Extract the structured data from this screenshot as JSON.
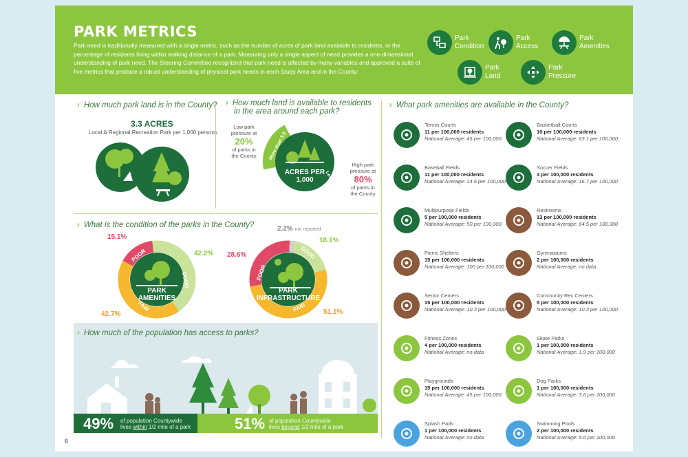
{
  "header": {
    "title": "PARK METRICS",
    "intro": "Park need is traditionally measured with a single metric, such as the number of acres of park land available to residents, or the percentage of residents living within walking distance of a park. Measuring only a single aspect of need provides a one-dimensional understanding of park need. The Steering Committee recognized that park need is affected by many variables and approved a suite of five metrics that produce a robust understanding of physical park needs in each Study Area and in the County:",
    "metrics": [
      {
        "label1": "Park",
        "label2": "Condition",
        "icon": "checklist-icon"
      },
      {
        "label1": "Park",
        "label2": "Access",
        "icon": "walker-icon"
      },
      {
        "label1": "Park",
        "label2": "Amenities",
        "icon": "picnic-icon"
      },
      {
        "label1": "Park",
        "label2": "Land",
        "icon": "land-icon"
      },
      {
        "label1": "Park",
        "label2": "Pressure",
        "icon": "pressure-arrows-icon"
      }
    ]
  },
  "land": {
    "question": "How much park land is in the County?",
    "acres": "3.3 ACRES",
    "desc": "Local & Regional Recreation Park per 1,000 persons"
  },
  "pressure": {
    "question_line1": "How much land is available to residents",
    "question_line2": "in the area around each park?",
    "low_label1": "Low park",
    "low_label2": "pressure at",
    "low_pct": "20%",
    "low_label3": "of parks in",
    "low_label4": "the County",
    "high_label1": "High park",
    "high_label2": "pressure at",
    "high_pct": "80%",
    "high_label3": "of parks in",
    "high_label4": "the County",
    "center1": "ACRES PER",
    "center2": "1,000",
    "arc_more": "More than 3.3",
    "arc_less": "Less than 3.3",
    "low_value": 20,
    "high_value": 80
  },
  "condition": {
    "question": "What is the condition of the parks in the County?",
    "amenities": {
      "title1": "PARK",
      "title2": "AMENITIES",
      "poor": "15.1%",
      "good": "42.2%",
      "fair": "42.7%",
      "poor_value": 15.1,
      "good_value": 42.2,
      "fair_value": 42.7
    },
    "infrastructure": {
      "title1": "PARK",
      "title2": "INFRASTRUCTURE",
      "not_reported": "2.2%",
      "not_reported_label": "not reported",
      "poor": "28.6%",
      "good": "18.1%",
      "fair": "51.1%",
      "poor_value": 28.6,
      "good_value": 18.1,
      "fair_value": 51.1,
      "nr_value": 2.2
    },
    "labels": {
      "poor": "POOR",
      "good": "GOOD",
      "fair": "FAIR"
    }
  },
  "access": {
    "question": "How much of the population has access to parks?",
    "within_pct": "49%",
    "within_text1": "of population Countywide",
    "within_text2a": "lives ",
    "within_text2b": "within",
    "within_text2c": " 1/2 mile of a park",
    "beyond_pct": "51%",
    "beyond_text1": "of population Countywide",
    "beyond_text2a": "lives ",
    "beyond_text2b": "beyond",
    "beyond_text2c": " 1/2 mile of a park"
  },
  "amenities": {
    "question": "What park amenities are available in the County?",
    "items": [
      {
        "name": "Tennis Courts",
        "rate": "11 per 100,000 residents",
        "nat": "National Average: 46 per 100,000",
        "color": "#1e6e3b",
        "icon": "tennis-ball-icon"
      },
      {
        "name": "Basketball Courts",
        "rate": "10 per 100,000 residents",
        "nat": "National Average: 63.1 per 100,000",
        "color": "#1e6e3b",
        "icon": "basketball-icon"
      },
      {
        "name": "Baseball Fields",
        "rate": "11 per 100,000 residents",
        "nat": "National Average: 14.6 per 100,000",
        "color": "#1e6e3b",
        "icon": "baseball-icon"
      },
      {
        "name": "Soccer Fields",
        "rate": "4 per 100,000 residents",
        "nat": "National Average: 16.7 per 100,000",
        "color": "#1e6e3b",
        "icon": "soccer-ball-icon"
      },
      {
        "name": "Multipurpose Fields",
        "rate": "5 per 100,000 residents",
        "nat": "National Average: 50 per 100,000",
        "color": "#1e6e3b",
        "icon": "field-icon"
      },
      {
        "name": "Restrooms",
        "rate": "13 per 100,000 residents",
        "nat": "National Average: 64.5 per 100,000",
        "color": "#8b5a3c",
        "icon": "restroom-icon"
      },
      {
        "name": "Picnic Shelters",
        "rate": "15 per 100,000 residents",
        "nat": "National Average: 100 per 100,000",
        "color": "#8b5a3c",
        "icon": "shelter-icon"
      },
      {
        "name": "Gymnasiums",
        "rate": "2 per 100,000 residents",
        "nat": "National Average: no data",
        "color": "#8b5a3c",
        "icon": "treadmill-icon"
      },
      {
        "name": "Senior Centers",
        "rate": "15 per 100,000 residents",
        "nat": "National Average: 10.3 per 100,000",
        "color": "#8b5a3c",
        "icon": "seniors-icon"
      },
      {
        "name": "Community Rec Centers",
        "rate": "5 per 100,000 residents",
        "nat": "National Average: 10.3 per 100,000",
        "color": "#8b5a3c",
        "icon": "community-icon"
      },
      {
        "name": "Fitness Zones",
        "rate": "4 per 100,000 residents",
        "nat": "National Average: no data",
        "color": "#8cc63f",
        "icon": "weightlifter-icon"
      },
      {
        "name": "Skate Parks",
        "rate": "1 per 100,000 residents",
        "nat": "National Average: 1.9 per 100,000",
        "color": "#8cc63f",
        "icon": "skater-icon"
      },
      {
        "name": "Playgrounds",
        "rate": "15 per 100,000 residents",
        "nat": "National Average: 45 per 100,000",
        "color": "#8cc63f",
        "icon": "slide-icon"
      },
      {
        "name": "Dog Parks",
        "rate": "1 per 100,000 residents",
        "nat": "National Average: 3.6 per 100,000",
        "color": "#8cc63f",
        "icon": "dog-icon"
      },
      {
        "name": "Splash Pads",
        "rate": "1 per 100,000 residents",
        "nat": "National Average: no data",
        "color": "#4aa3df",
        "icon": "water-drop-icon"
      },
      {
        "name": "Swimming Pools",
        "rate": "2 per 100,000 residents",
        "nat": "National Average: 5.6 per 100,000",
        "color": "#4aa3df",
        "icon": "swimmer-icon"
      }
    ]
  },
  "page_number": "6"
}
